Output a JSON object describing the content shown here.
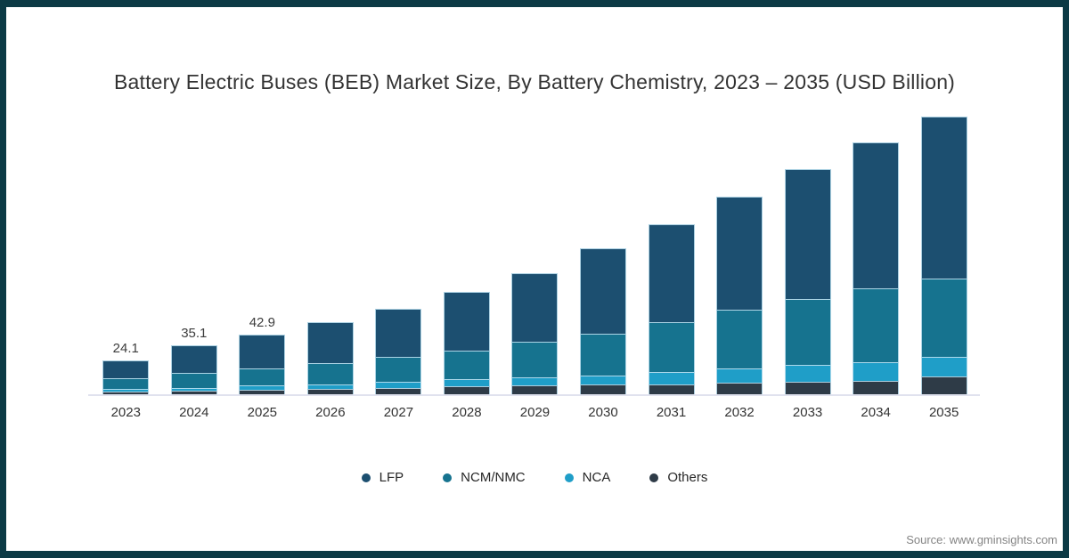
{
  "title": "Battery Electric Buses (BEB) Market Size, By Battery Chemistry, 2023 – 2035 (USD Billion)",
  "source": "Source: www.gminsights.com",
  "frame": {
    "border_color": "#0c3a45",
    "background": "#ffffff"
  },
  "chart_data": {
    "type": "bar",
    "stacked": true,
    "title": "Battery Electric Buses (BEB) Market Size, By Battery Chemistry, 2023 – 2035 (USD Billion)",
    "unit": "USD Billion",
    "categories": [
      "2023",
      "2024",
      "2025",
      "2026",
      "2027",
      "2028",
      "2029",
      "2030",
      "2031",
      "2032",
      "2033",
      "2034",
      "2035"
    ],
    "series": [
      {
        "name": "LFP",
        "color": "#1c4f70",
        "values": [
          12.8,
          19.6,
          24.3,
          29.8,
          34.5,
          41.9,
          49.4,
          61.0,
          70.5,
          81.5,
          93.5,
          104.5,
          116.5
        ]
      },
      {
        "name": "NCM/NMC",
        "color": "#16738f",
        "values": [
          7.1,
          10.7,
          12.3,
          15.0,
          17.9,
          20.4,
          25.5,
          30.3,
          36.1,
          42.3,
          47.1,
          53.3,
          56.1
        ]
      },
      {
        "name": "NCA",
        "color": "#1f9ec8",
        "values": [
          2.0,
          2.4,
          3.1,
          3.4,
          4.6,
          5.4,
          5.7,
          6.7,
          8.5,
          10.2,
          12.2,
          13.3,
          14.5
        ]
      },
      {
        "name": "Others",
        "color": "#2e3b47",
        "values": [
          2.2,
          2.4,
          3.2,
          3.8,
          4.2,
          5.7,
          6.6,
          6.8,
          7.3,
          8.1,
          8.9,
          9.8,
          12.6
        ]
      }
    ],
    "stack_order_bottom_to_top": [
      "Others",
      "NCA",
      "NCM/NMC",
      "LFP"
    ],
    "totals": [
      24.1,
      35.1,
      42.9,
      52.0,
      61.2,
      73.4,
      87.2,
      104.8,
      122.4,
      142.1,
      161.7,
      180.9,
      199.7
    ],
    "total_labels_shown": [
      "24.1",
      "35.1",
      "42.9",
      "",
      "",
      "",
      "",
      "",
      "",
      "",
      "",
      "",
      ""
    ],
    "ylim": [
      0,
      199.7
    ],
    "grid": false,
    "legend_position": "bottom",
    "legend_items": [
      "LFP",
      "NCM/NMC",
      "NCA",
      "Others"
    ]
  }
}
